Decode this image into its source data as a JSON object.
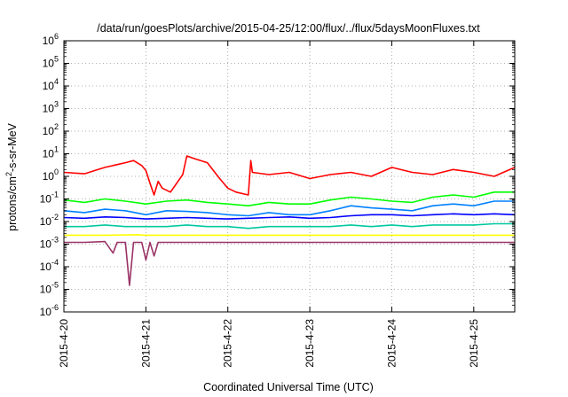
{
  "chart_data": {
    "type": "line",
    "title": "/data/run/goesPlots/archive/2015-04-25/12:00/flux/../flux/5daysMoonFluxes.txt",
    "xlabel": "Coordinated Universal Time (UTC)",
    "ylabel": "protons/cm²-s-sr-MeV",
    "ylabel_parts": {
      "pre": "protons/cm",
      "sup": "2",
      "post": "-s-sr-MeV"
    },
    "yscale": "log",
    "ylim_exp": [
      -6,
      6
    ],
    "ytick_exponents": [
      "-6",
      "-5",
      "-4",
      "-3",
      "-2",
      "-1",
      "0",
      "1",
      "2",
      "3",
      "4",
      "5",
      "6"
    ],
    "ytick_base": "10",
    "xlim_days": [
      "2015-04-20",
      "2015-04-25 12:00"
    ],
    "xticks": [
      "2015-4-20",
      "2015-4-21",
      "2015-4-22",
      "2015-4-23",
      "2015-4-24",
      "2015-4-25"
    ],
    "grid": true,
    "grid_style": "dotted",
    "legend": "none",
    "series": [
      {
        "color": "#ff0000",
        "x_days": [
          0,
          0.25,
          0.5,
          0.75,
          0.85,
          0.95,
          1.0,
          1.05,
          1.1,
          1.15,
          1.2,
          1.3,
          1.45,
          1.5,
          1.6,
          1.75,
          1.9,
          2.0,
          2.1,
          2.25,
          2.28,
          2.3,
          2.5,
          2.75,
          3.0,
          3.25,
          3.5,
          3.75,
          4.0,
          4.25,
          4.5,
          4.75,
          5.0,
          5.25,
          5.5
        ],
        "y": [
          1.5,
          1.3,
          2.5,
          4,
          5,
          3,
          1.8,
          0.5,
          0.15,
          0.6,
          0.3,
          0.2,
          1.2,
          8,
          6,
          4,
          0.8,
          0.3,
          0.2,
          0.15,
          5,
          1.5,
          1.2,
          1.5,
          0.8,
          1.2,
          1.5,
          1.0,
          2.5,
          1.5,
          1.2,
          2.0,
          1.5,
          1.0,
          2.5
        ]
      },
      {
        "color": "#00ff00",
        "x_days": [
          0,
          0.25,
          0.5,
          0.75,
          1.0,
          1.25,
          1.5,
          1.75,
          2.0,
          2.25,
          2.5,
          2.75,
          3.0,
          3.25,
          3.5,
          3.75,
          4.0,
          4.25,
          4.5,
          4.75,
          5.0,
          5.25,
          5.5
        ],
        "y": [
          0.09,
          0.07,
          0.1,
          0.08,
          0.06,
          0.08,
          0.09,
          0.07,
          0.06,
          0.05,
          0.07,
          0.06,
          0.06,
          0.09,
          0.12,
          0.1,
          0.08,
          0.07,
          0.12,
          0.15,
          0.12,
          0.2,
          0.2
        ]
      },
      {
        "color": "#0080ff",
        "x_days": [
          0,
          0.25,
          0.5,
          0.75,
          1.0,
          1.25,
          1.5,
          1.75,
          2.0,
          2.25,
          2.5,
          2.75,
          3.0,
          3.25,
          3.5,
          3.75,
          4.0,
          4.25,
          4.5,
          4.75,
          5.0,
          5.25,
          5.5
        ],
        "y": [
          0.03,
          0.025,
          0.035,
          0.03,
          0.02,
          0.03,
          0.028,
          0.025,
          0.02,
          0.018,
          0.025,
          0.02,
          0.02,
          0.03,
          0.05,
          0.04,
          0.035,
          0.03,
          0.05,
          0.06,
          0.05,
          0.08,
          0.08
        ]
      },
      {
        "color": "#0000ff",
        "x_days": [
          0,
          0.25,
          0.5,
          0.75,
          1.0,
          1.25,
          1.5,
          1.75,
          2.0,
          2.25,
          2.5,
          2.75,
          3.0,
          3.25,
          3.5,
          3.75,
          4.0,
          4.25,
          4.5,
          4.75,
          5.0,
          5.25,
          5.5
        ],
        "y": [
          0.015,
          0.014,
          0.016,
          0.015,
          0.013,
          0.014,
          0.015,
          0.014,
          0.013,
          0.014,
          0.015,
          0.016,
          0.014,
          0.015,
          0.018,
          0.02,
          0.02,
          0.018,
          0.02,
          0.022,
          0.02,
          0.022,
          0.02
        ]
      },
      {
        "color": "#00c8a0",
        "x_days": [
          0,
          0.25,
          0.5,
          0.75,
          1.0,
          1.25,
          1.5,
          1.75,
          2.0,
          2.25,
          2.5,
          2.75,
          3.0,
          3.25,
          3.5,
          3.75,
          4.0,
          4.25,
          4.5,
          4.75,
          5.0,
          5.25,
          5.5
        ],
        "y": [
          0.006,
          0.006,
          0.007,
          0.006,
          0.006,
          0.006,
          0.007,
          0.006,
          0.006,
          0.005,
          0.006,
          0.006,
          0.006,
          0.006,
          0.007,
          0.006,
          0.007,
          0.006,
          0.007,
          0.007,
          0.007,
          0.008,
          0.008
        ]
      },
      {
        "color": "#ffff00",
        "x_days": [
          0,
          0.5,
          0.9,
          1.0,
          1.5,
          2.0,
          2.5,
          3.0,
          3.5,
          4.0,
          4.5,
          5.0,
          5.5
        ],
        "y": [
          0.0025,
          0.0025,
          0.0026,
          0.0025,
          0.0025,
          0.0025,
          0.0025,
          0.0025,
          0.0025,
          0.0025,
          0.0025,
          0.0025,
          0.0025
        ]
      },
      {
        "color": "#993366",
        "x_days": [
          0,
          0.25,
          0.5,
          0.6,
          0.65,
          0.7,
          0.75,
          0.8,
          0.85,
          0.9,
          0.95,
          1.0,
          1.05,
          1.1,
          1.15,
          1.2,
          1.5,
          2.0,
          2.5,
          3.0,
          3.5,
          4.0,
          4.5,
          5.0,
          5.5
        ],
        "y": [
          0.0012,
          0.0012,
          0.0013,
          0.0004,
          0.0012,
          0.0012,
          0.0012,
          1.5e-05,
          0.0012,
          0.0012,
          0.0012,
          0.0002,
          0.0012,
          0.0003,
          0.0012,
          0.0012,
          0.0012,
          0.0012,
          0.0012,
          0.0012,
          0.0012,
          0.0012,
          0.0012,
          0.0012,
          0.0012
        ]
      }
    ]
  }
}
